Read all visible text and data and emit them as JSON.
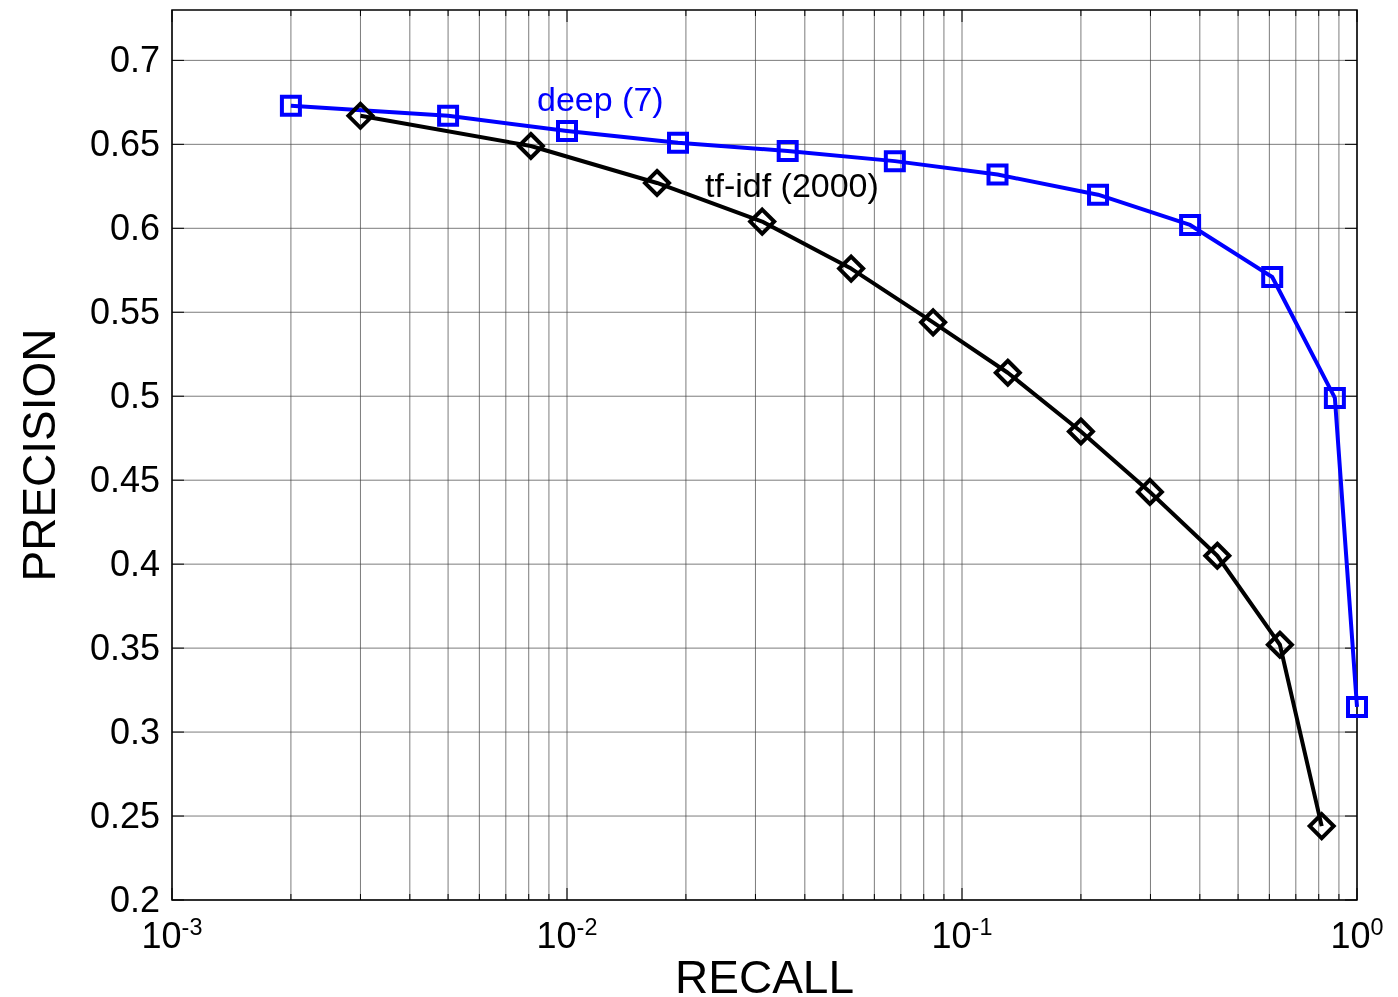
{
  "chart_data": {
    "type": "line",
    "xlabel": "RECALL",
    "ylabel": "PRECISION",
    "log": "x",
    "grid": true,
    "line_style": "solid",
    "xlim": [
      0.001,
      1
    ],
    "ylim": [
      0.2,
      0.73
    ],
    "xticks": [
      {
        "value": 0.001,
        "label": "10$^{-3}$"
      },
      {
        "value": 0.002,
        "label": null
      },
      {
        "value": 0.003,
        "label": null
      },
      {
        "value": 0.004,
        "label": null
      },
      {
        "value": 0.005,
        "label": null
      },
      {
        "value": 0.006,
        "label": null
      },
      {
        "value": 0.007,
        "label": null
      },
      {
        "value": 0.008,
        "label": null
      },
      {
        "value": 0.009,
        "label": null
      },
      {
        "value": 0.01,
        "label": "10$^{-2}$"
      },
      {
        "value": 0.02,
        "label": null
      },
      {
        "value": 0.03,
        "label": null
      },
      {
        "value": 0.04,
        "label": null
      },
      {
        "value": 0.05,
        "label": null
      },
      {
        "value": 0.06,
        "label": null
      },
      {
        "value": 0.07,
        "label": null
      },
      {
        "value": 0.08,
        "label": null
      },
      {
        "value": 0.09,
        "label": null
      },
      {
        "value": 0.1,
        "label": "10$^{-1}$"
      },
      {
        "value": 0.2,
        "label": null
      },
      {
        "value": 0.3,
        "label": null
      },
      {
        "value": 0.4,
        "label": null
      },
      {
        "value": 0.5,
        "label": null
      },
      {
        "value": 0.6,
        "label": null
      },
      {
        "value": 0.7,
        "label": null
      },
      {
        "value": 0.8,
        "label": null
      },
      {
        "value": 0.9,
        "label": null
      },
      {
        "value": 1,
        "label": "10$^{0}$"
      }
    ],
    "yticks": [
      0.2,
      0.25,
      0.3,
      0.35,
      0.4,
      0.45,
      0.5,
      0.55,
      0.6,
      0.65,
      0.7
    ],
    "series": [
      {
        "name": "deep (7)",
        "color": "#0000ff",
        "marker": "square",
        "x": [
          0.002,
          0.005,
          0.01,
          0.0191,
          0.0362,
          0.0676,
          0.123,
          0.221,
          0.378,
          0.61,
          0.879,
          1
        ],
        "values": [
          0.673,
          0.667,
          0.658,
          0.651,
          0.646,
          0.64,
          0.632,
          0.62,
          0.602,
          0.571,
          0.499,
          0.315
        ]
      },
      {
        "name": "tf-idf (2000)",
        "color": "#000000",
        "marker": "diamond",
        "x": [
          0.003,
          0.0081,
          0.0169,
          0.0312,
          0.0524,
          0.0845,
          0.1306,
          0.2,
          0.299,
          0.443,
          0.638,
          0.814
        ],
        "values": [
          0.667,
          0.649,
          0.627,
          0.604,
          0.576,
          0.544,
          0.514,
          0.479,
          0.443,
          0.405,
          0.352,
          0.244
        ]
      }
    ]
  }
}
